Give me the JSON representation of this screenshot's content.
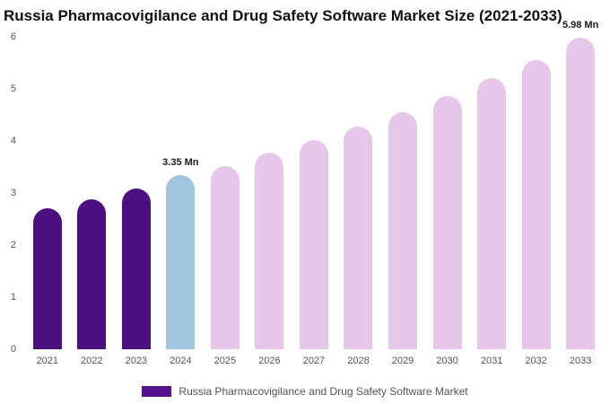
{
  "title": "Russia Pharmacovigilance and Drug Safety Software Market Size (2021-2033)",
  "chart_data": {
    "type": "bar",
    "title": "Russia Pharmacovigilance and Drug Safety Software Market Size (2021-2033)",
    "categories": [
      "2021",
      "2022",
      "2023",
      "2024",
      "2025",
      "2026",
      "2027",
      "2028",
      "2029",
      "2030",
      "2031",
      "2032",
      "2033"
    ],
    "values": [
      2.7,
      2.88,
      3.08,
      3.35,
      3.52,
      3.77,
      4.02,
      4.28,
      4.56,
      4.87,
      5.21,
      5.56,
      5.98
    ],
    "unit": "Mn",
    "bar_colors": [
      "#4b0f82",
      "#4b0f82",
      "#4b0f82",
      "#9fc5e0",
      "#e7c7e9",
      "#e7c7e9",
      "#e7c7e9",
      "#e7c7e9",
      "#e7c7e9",
      "#e7c7e9",
      "#e7c7e9",
      "#e7c7e9",
      "#e7c7e9"
    ],
    "annotations": [
      {
        "index": 3,
        "text": "3.35 Mn"
      },
      {
        "index": 12,
        "text": "5.98 Mn"
      }
    ],
    "xlabel": "",
    "ylabel": "",
    "ylim": [
      0,
      6
    ],
    "yticks": [
      "0",
      "1",
      "2",
      "3",
      "4",
      "5",
      "6"
    ],
    "grid": false,
    "legend_position": "bottom",
    "legend": [
      {
        "label": "Russia Pharmacovigilance and Drug Safety Software Market",
        "color": "#55128a"
      }
    ]
  }
}
